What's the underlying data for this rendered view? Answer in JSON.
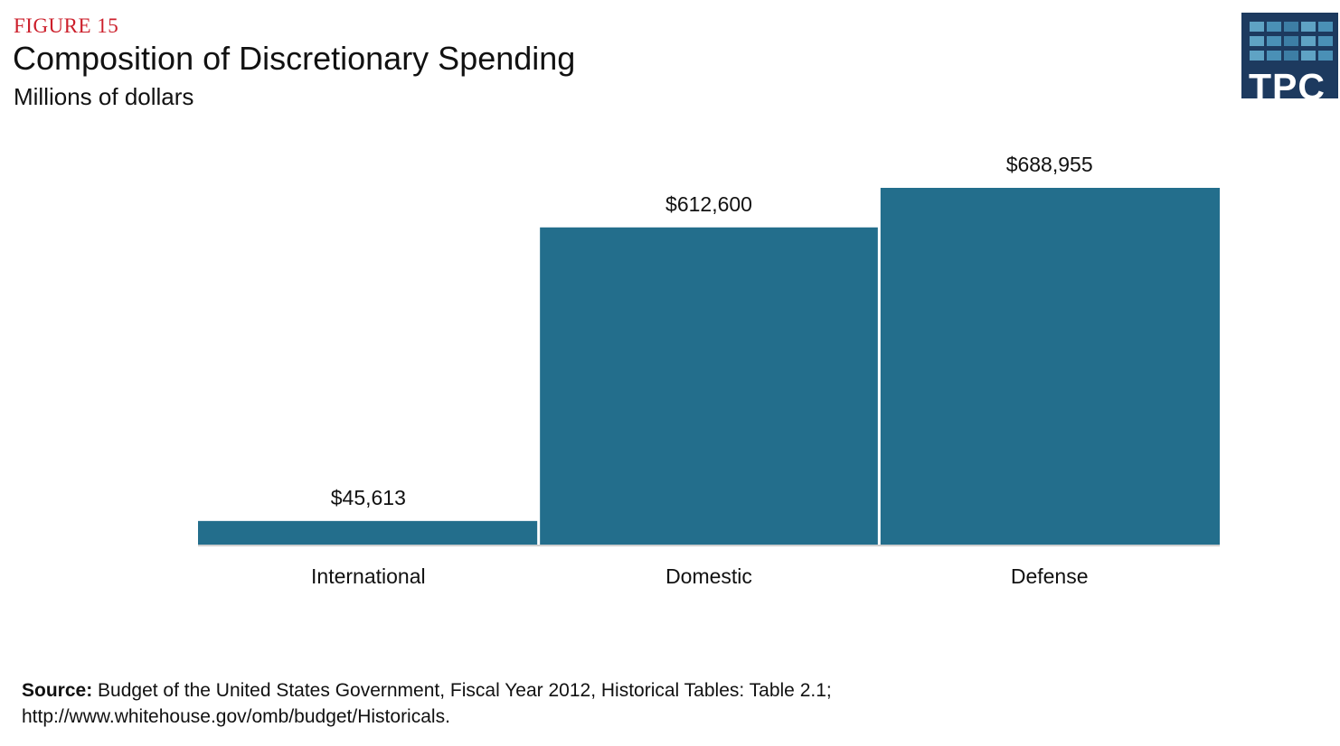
{
  "header": {
    "figure_label": "FIGURE 15",
    "title": "Composition of Discretionary Spending",
    "subtitle": "Millions of dollars"
  },
  "logo": {
    "text": "TPC",
    "background": "#1d3a5f",
    "tile_colors": [
      "#5fa3c4",
      "#4a90b6",
      "#3d7ea5",
      "#5fa3c4",
      "#4a90b6"
    ]
  },
  "colors": {
    "bar": "#236e8c",
    "baseline": "#cfcfcf",
    "figure_label": "#cc1f2b"
  },
  "chart_data": {
    "type": "bar",
    "categories": [
      "International",
      "Domestic",
      "Defense"
    ],
    "values": [
      45613,
      612600,
      688955
    ],
    "data_labels": [
      "$45,613",
      "$612,600",
      "$688,955"
    ],
    "ylim": [
      0,
      700000
    ],
    "grid": false,
    "legend": "none"
  },
  "footer": {
    "source_label": "Source:",
    "source_text": " Budget of the United States Government, Fiscal Year 2012, Historical Tables: Table 2.1;",
    "source_url": "http://www.whitehouse.gov/omb/budget/Historicals."
  }
}
